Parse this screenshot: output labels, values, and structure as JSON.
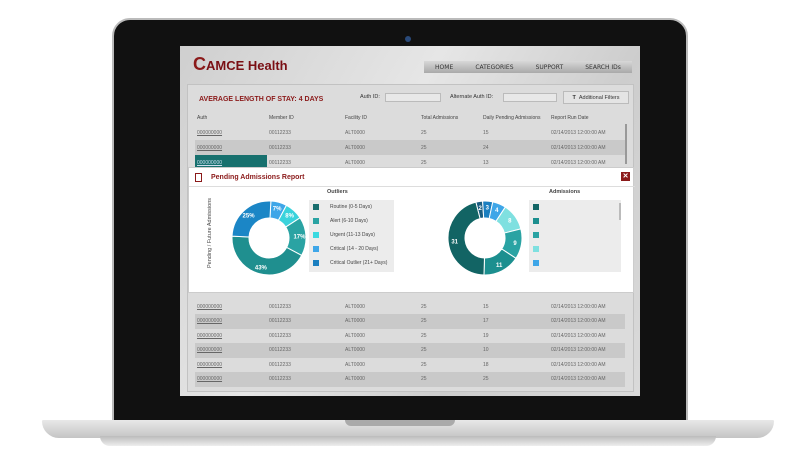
{
  "brand": {
    "logo_text": "AMCE Health"
  },
  "nav": [
    "HOME",
    "CATEGORIES",
    "SUPPORT",
    "SEARCH IDs"
  ],
  "page": {
    "title": "AVERAGE LENGTH OF STAY: 4 DAYS",
    "auth_label": "Auth ID:",
    "auth_value": "",
    "alt_auth_label": "Alternate Auth ID:",
    "alt_auth_value": "",
    "filters_label": "Additional Filters"
  },
  "table": {
    "headers": [
      "Auth",
      "Member ID",
      "Facility ID",
      "Total Admissions",
      "Daily Pending Admissions",
      "Report Run Date"
    ],
    "rows_top": [
      [
        "000000000",
        "00112233",
        "ALT0000",
        "25",
        "15",
        "02/14/2013 12:00:00 AM"
      ],
      [
        "000000000",
        "00112233",
        "ALT0000",
        "25",
        "24",
        "02/14/2013 12:00:00 AM"
      ],
      [
        "000000000",
        "00112233",
        "ALT0000",
        "25",
        "13",
        "02/14/2013 12:00:00 AM"
      ]
    ],
    "rows_bottom": [
      [
        "000000000",
        "00112233",
        "ALT0000",
        "25",
        "15",
        "02/14/2013 12:00:00 AM"
      ],
      [
        "000000000",
        "00112233",
        "ALT0000",
        "25",
        "17",
        "02/14/2013 12:00:00 AM"
      ],
      [
        "000000000",
        "00112233",
        "ALT0000",
        "25",
        "19",
        "02/14/2013 12:00:00 AM"
      ],
      [
        "000000000",
        "00112233",
        "ALT0000",
        "25",
        "10",
        "02/14/2013 12:00:00 AM"
      ],
      [
        "000000000",
        "00112233",
        "ALT0000",
        "25",
        "18",
        "02/14/2013 12:00:00 AM"
      ],
      [
        "000000000",
        "00112233",
        "ALT0000",
        "25",
        "25",
        "02/14/2013 12:00:00 AM"
      ]
    ]
  },
  "modal": {
    "title": "Pending Admissions Report",
    "close": "✕",
    "y_label": "Pending / Future Admissions"
  },
  "chart_data": [
    {
      "type": "pie",
      "donut": true,
      "title": "Outliers",
      "labels": [
        "7%",
        "8%",
        "17%",
        "43%",
        "25%"
      ],
      "values": [
        7,
        8,
        17,
        43,
        25
      ],
      "colors": [
        "#3ea6e8",
        "#3ad3dc",
        "#2aa3a3",
        "#1f8f8f",
        "#1b86c6"
      ],
      "legend": [
        {
          "label": "Routine (0-5 Days)",
          "color": "#1a6e6e"
        },
        {
          "label": "Alert (6-10 Days)",
          "color": "#2aa3a3"
        },
        {
          "label": "Urgent (11-13 Days)",
          "color": "#3ad9e0"
        },
        {
          "label": "Critical (14 - 20 Days)",
          "color": "#3ea6e8"
        },
        {
          "label": "Critical Outlier (21+ Days)",
          "color": "#1b7fc0"
        }
      ]
    },
    {
      "type": "pie",
      "donut": true,
      "title": "Admissions",
      "labels": [
        "2",
        "3",
        "4",
        "8",
        "9",
        "11",
        "31"
      ],
      "values": [
        2,
        3,
        4,
        8,
        9,
        11,
        31
      ],
      "colors": [
        "#1b5e82",
        "#1b7fc0",
        "#3ea6e8",
        "#7fe0e0",
        "#2aa3a3",
        "#1c8f8f",
        "#126464"
      ],
      "legend_colors": [
        "#126464",
        "#1c8f8f",
        "#2aa3a3",
        "#7fe0e0",
        "#3ea6e8"
      ]
    }
  ]
}
